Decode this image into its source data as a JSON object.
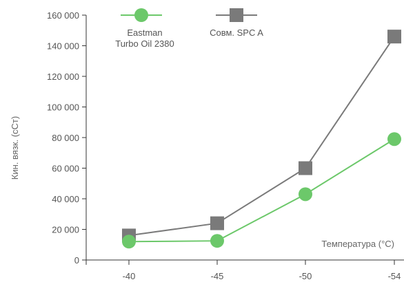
{
  "chart_data": {
    "type": "line",
    "categories": [
      "-40",
      "-45",
      "-50",
      "-54"
    ],
    "series": [
      {
        "name_lines": [
          "Eastman",
          "Turbo Oil 2380"
        ],
        "color": "#6cc86a",
        "marker": "circle",
        "values": [
          12000,
          12500,
          43000,
          79000
        ]
      },
      {
        "name_lines": [
          "Совм. SPC A"
        ],
        "color": "#7a7a7a",
        "marker": "square",
        "values": [
          16000,
          24000,
          60000,
          146000
        ]
      }
    ],
    "xlabel": "Температура (°C)",
    "ylabel": "Кин. вязк. (сСт)",
    "ylim": [
      0,
      160000
    ],
    "yticks": [
      0,
      20000,
      40000,
      60000,
      80000,
      100000,
      120000,
      140000,
      160000
    ],
    "ytick_labels": [
      "0",
      "20 000",
      "40 000",
      "60 000",
      "80 000",
      "100 000",
      "120 000",
      "140 000",
      "160 000"
    ],
    "grid": false,
    "legend_position": "top-left"
  }
}
